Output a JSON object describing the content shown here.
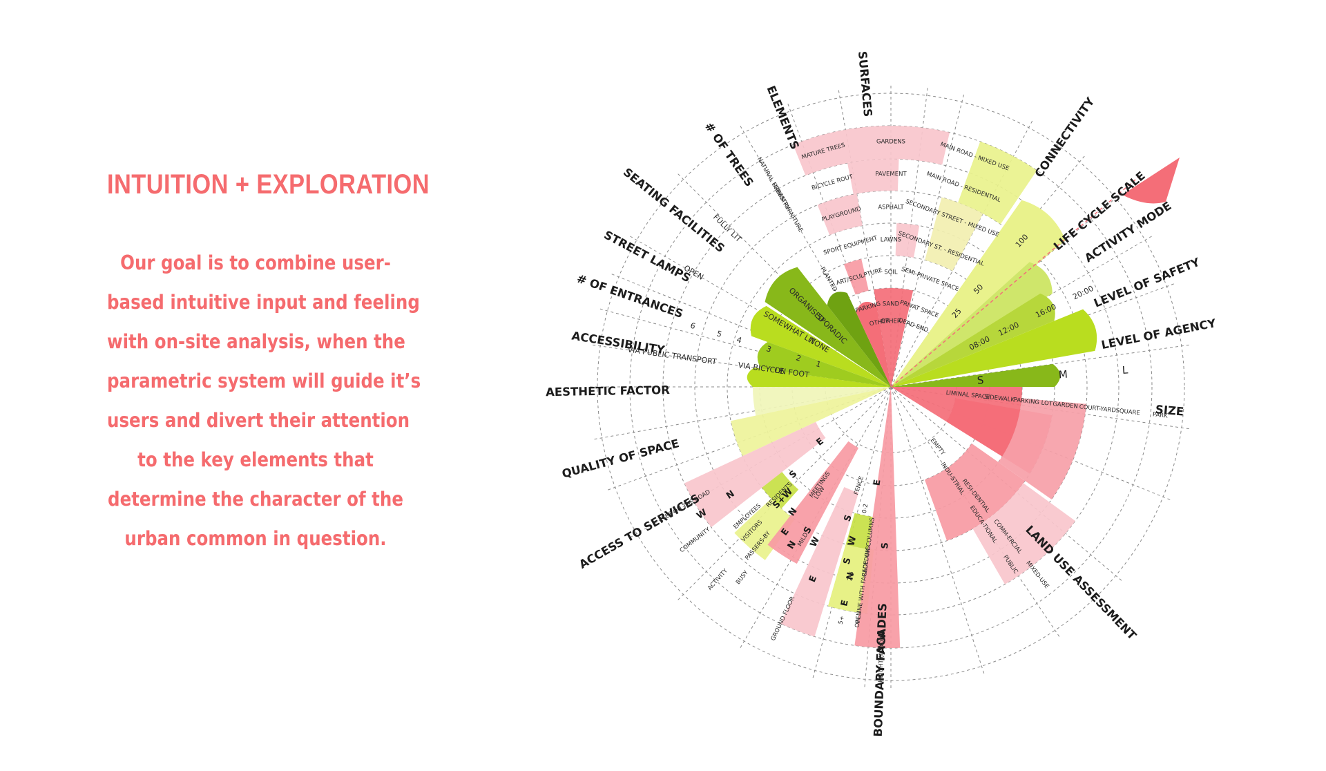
{
  "headline": "INTUITION + EXPLORATION",
  "body_lines": [
    "Our goal is to combine user-",
    "based intuitive input and feeling",
    "with on-site analysis, when the",
    "parametric system will guide it’s",
    "users and divert their attention",
    "to the key elements that",
    "determine the character of the",
    "urban common in question."
  ],
  "colors": {
    "text_accent": "#f56b6e",
    "pink_light": "#f9c5cc",
    "pink_mid": "#f79aa3",
    "red": "#f46e78",
    "yellow_green": "#e9f28c",
    "lime": "#b9dd1f",
    "green": "#88b81a"
  },
  "axes": {
    "surfaces": "SURFACES",
    "elements": "ELEMENTS",
    "trees": "# OF TREES",
    "seating": "SEATING FACILITIES",
    "lamps": "STREET LAMPS",
    "entrances": "# OF ENTRANCES",
    "accessibility": "ACCESSIBILITY",
    "aesthetic": "AESTHETIC FACTOR",
    "quality": "QUALITY OF SPACE",
    "services": "ACCESS TO SERVICES",
    "facades": "BOUNDARY FACADES",
    "land_use": "LAND USE ASSESSMENT",
    "size": "SIZE",
    "agency": "LEVEL OF AGENCY",
    "safety": "LEVEL OF SAFETY",
    "activity": "ACTIVITY MODE",
    "life_cycle": "LIFE CYCLE SCALE",
    "connectivity": "CONNECTIVITY"
  },
  "surfaces_items": [
    "GARDENS",
    "PAVEMENT",
    "ASPHALT",
    "LAWNS",
    "SOIL",
    "SAND",
    "OTHER"
  ],
  "elements_items": [
    "MATURE TREES",
    "BICYCLE ROUT",
    "PLAYGROUND",
    "SPORT EQUIPMENT",
    "ART/SCULPTURE",
    "PARKING",
    "OTHER"
  ],
  "connectivity_items": [
    "MAIN ROAD - MIXED USE",
    "MAIN ROAD - RESIDENTIAL",
    "SECONDARY STREET - MIXED USE",
    "SECONDARY ST. - RESIDENTIAL",
    "SEMI-PRIVATE SPACE",
    "PRIVAT SPACE",
    "DEAD END"
  ],
  "trees_items": [
    "NATURAL FORESTRY",
    "URBAN FURNITURE",
    "PLANTED"
  ],
  "seating_items": [
    "FULLY LIT",
    "ORGANISED",
    "SPORADIC"
  ],
  "lamps_items": [
    "OPEN",
    "SOMEWHAT LIT",
    "NONE"
  ],
  "entrance_numbers": [
    "6",
    "5",
    "4",
    "3",
    "2",
    "1"
  ],
  "access_items": [
    "VIA PUBLIC TRANSPORT",
    "VIA BICYCLE",
    "ON FOOT"
  ],
  "life_cycle_values": [
    "100",
    "50",
    "25"
  ],
  "activity_values": [
    "20:00",
    "16:00",
    "12:00",
    "08:00"
  ],
  "size_values": [
    "S",
    "M",
    "L"
  ],
  "size_items": [
    "LIMINAL SPACE",
    "SIDEWALK",
    "PARKING LOT",
    "GARDEN",
    "COURT-YARD",
    "SQUARE",
    "PARK"
  ],
  "land_use_items": [
    "EMPTY",
    "INDU-STRIAL",
    "RESI-DENTIAL",
    "EDUCA-TIONAL",
    "COMM-ERCIAL",
    "PUBLIC",
    "MIXED-USE"
  ],
  "facade_items": [
    "FENCE",
    "0-2",
    "2-5",
    "5+",
    "ON COLUMNS",
    "RECEDING",
    "IN LINE WITH FACADE",
    "OPEN",
    "HEIGHT (FLOORS)"
  ],
  "services_items": [
    "EYES ON THE ROAD",
    "COMMUNITY",
    "ACTIVITY",
    "BUSY",
    "GROUND FLOOR",
    "EMPLOYEES",
    "VISITORS",
    "PASSERS-BY",
    "RESIDENTS",
    "MEETINGS",
    "LOW",
    "MILD"
  ],
  "compass_letters": [
    "N",
    "E",
    "S",
    "W",
    "S+W"
  ]
}
